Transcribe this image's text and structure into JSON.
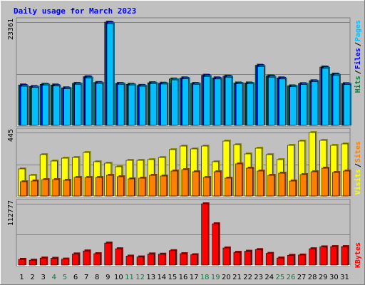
{
  "chart_data": {
    "type": "bar",
    "title": "Daily usage for March 2023",
    "categories": [
      "1",
      "2",
      "3",
      "4",
      "5",
      "6",
      "7",
      "8",
      "9",
      "10",
      "11",
      "12",
      "13",
      "14",
      "15",
      "16",
      "17",
      "18",
      "19",
      "20",
      "21",
      "22",
      "23",
      "24",
      "25",
      "26",
      "27",
      "28",
      "29",
      "30",
      "31"
    ],
    "weekend_days": [
      "4",
      "5",
      "11",
      "12",
      "18",
      "19",
      "25",
      "26"
    ],
    "panels": [
      {
        "name": "top",
        "ymax_label": "23361",
        "ymax": 23361,
        "series": [
          {
            "name": "Hits",
            "color": "#008040",
            "values": [
              9150,
              8800,
              9300,
              9150,
              8500,
              9500,
              11000,
              9700,
              23361,
              9500,
              9300,
              9050,
              9650,
              9550,
              10500,
              10750,
              9500,
              11350,
              10750,
              11150,
              9600,
              9600,
              13600,
              11200,
              10750,
              8950,
              9450,
              10100,
              13200,
              11600,
              9450
            ]
          },
          {
            "name": "Files",
            "color": "#0000ff",
            "values": [
              9000,
              8700,
              9200,
              9000,
              8400,
              9400,
              10900,
              9600,
              23200,
              9400,
              9200,
              8950,
              9550,
              9450,
              9500,
              10650,
              9400,
              11250,
              10650,
              11050,
              9500,
              9500,
              13500,
              11100,
              10650,
              8850,
              9350,
              10000,
              13100,
              11500,
              9350
            ]
          },
          {
            "name": "Pages",
            "color": "#00c0ff",
            "values": [
              8850,
              8600,
              9100,
              8900,
              8300,
              9300,
              10700,
              9500,
              23000,
              9300,
              9100,
              8850,
              9450,
              9350,
              10300,
              10550,
              9300,
              11050,
              10500,
              10900,
              9400,
              9400,
              13300,
              10900,
              10500,
              8750,
              9250,
              9900,
              12900,
              11300,
              9250
            ]
          }
        ]
      },
      {
        "name": "middle",
        "ymax_label": "445",
        "ymax": 445,
        "series": [
          {
            "name": "Visits",
            "color": "#ffff00",
            "values": [
              190,
              145,
              290,
              245,
              265,
              270,
              305,
              240,
              230,
              205,
              250,
              250,
              255,
              270,
              325,
              350,
              330,
              350,
              240,
              385,
              360,
              295,
              335,
              290,
              255,
              355,
              385,
              445,
              390,
              355,
              365
            ]
          },
          {
            "name": "Sites",
            "color": "#ff8000",
            "values": [
              100,
              105,
              115,
              115,
              110,
              130,
              130,
              130,
              145,
              135,
              120,
              125,
              145,
              140,
              175,
              185,
              170,
              130,
              170,
              125,
              225,
              195,
              175,
              145,
              160,
              105,
              150,
              170,
              195,
              165,
              175
            ]
          }
        ]
      },
      {
        "name": "bottom",
        "ymax_label": "112777",
        "ymax": 112777,
        "series": [
          {
            "name": "KBytes",
            "color": "#ff0000",
            "values": [
              10500,
              9000,
              13000,
              12500,
              11000,
              20500,
              26000,
              21000,
              40500,
              30000,
              16500,
              15000,
              20500,
              20000,
              26500,
              21000,
              19000,
              112777,
              76000,
              31500,
              23500,
              25500,
              28500,
              21500,
              13000,
              18000,
              18500,
              30000,
              33500,
              34000,
              34000
            ]
          }
        ]
      }
    ]
  }
}
